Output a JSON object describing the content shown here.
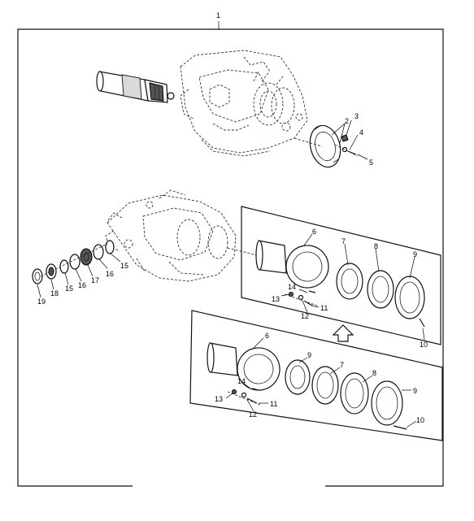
{
  "callouts": {
    "c1": "1",
    "c2": "2",
    "c3": "3",
    "c4": "4",
    "c5": "5",
    "c6a": "6",
    "c7a": "7",
    "c8a": "8",
    "c9a": "9",
    "c10a": "10",
    "c11a": "11",
    "c12a": "12",
    "c13a": "13",
    "c14a": "14",
    "c15a": "15",
    "c15b": "15",
    "c16a": "16",
    "c16b": "16",
    "c17": "17",
    "c18": "18",
    "c19": "19",
    "c6b": "6",
    "c7b": "7",
    "c8b": "8",
    "c9b": "9",
    "c9c": "9",
    "c10b": "10",
    "c11b": "11",
    "c12b": "12",
    "c13b": "13",
    "c14b": "14"
  }
}
